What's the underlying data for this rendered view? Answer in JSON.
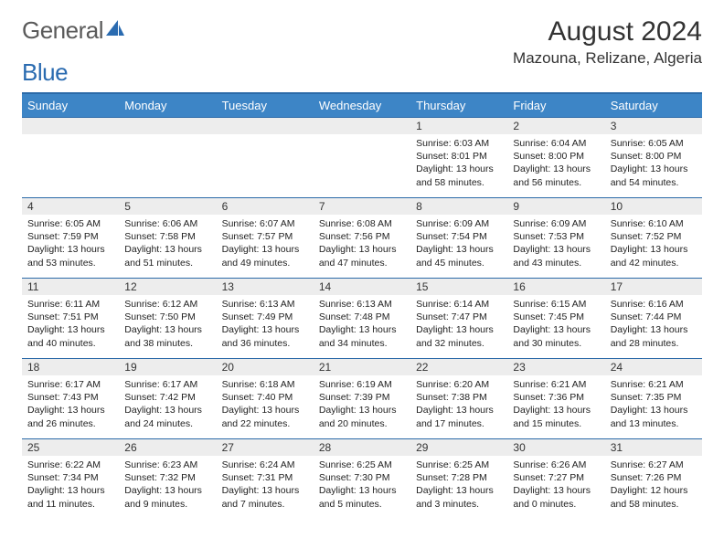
{
  "logo": {
    "word1": "General",
    "word2": "Blue"
  },
  "title": "August 2024",
  "location": "Mazouna, Relizane, Algeria",
  "colors": {
    "header_bg": "#3d85c6",
    "border": "#2b6aa8",
    "daynum_bg": "#ededed"
  },
  "weekdays": [
    "Sunday",
    "Monday",
    "Tuesday",
    "Wednesday",
    "Thursday",
    "Friday",
    "Saturday"
  ],
  "lead_blanks": 4,
  "days": [
    {
      "n": "1",
      "sr": "6:03 AM",
      "ss": "8:01 PM",
      "dl": "13 hours and 58 minutes."
    },
    {
      "n": "2",
      "sr": "6:04 AM",
      "ss": "8:00 PM",
      "dl": "13 hours and 56 minutes."
    },
    {
      "n": "3",
      "sr": "6:05 AM",
      "ss": "8:00 PM",
      "dl": "13 hours and 54 minutes."
    },
    {
      "n": "4",
      "sr": "6:05 AM",
      "ss": "7:59 PM",
      "dl": "13 hours and 53 minutes."
    },
    {
      "n": "5",
      "sr": "6:06 AM",
      "ss": "7:58 PM",
      "dl": "13 hours and 51 minutes."
    },
    {
      "n": "6",
      "sr": "6:07 AM",
      "ss": "7:57 PM",
      "dl": "13 hours and 49 minutes."
    },
    {
      "n": "7",
      "sr": "6:08 AM",
      "ss": "7:56 PM",
      "dl": "13 hours and 47 minutes."
    },
    {
      "n": "8",
      "sr": "6:09 AM",
      "ss": "7:54 PM",
      "dl": "13 hours and 45 minutes."
    },
    {
      "n": "9",
      "sr": "6:09 AM",
      "ss": "7:53 PM",
      "dl": "13 hours and 43 minutes."
    },
    {
      "n": "10",
      "sr": "6:10 AM",
      "ss": "7:52 PM",
      "dl": "13 hours and 42 minutes."
    },
    {
      "n": "11",
      "sr": "6:11 AM",
      "ss": "7:51 PM",
      "dl": "13 hours and 40 minutes."
    },
    {
      "n": "12",
      "sr": "6:12 AM",
      "ss": "7:50 PM",
      "dl": "13 hours and 38 minutes."
    },
    {
      "n": "13",
      "sr": "6:13 AM",
      "ss": "7:49 PM",
      "dl": "13 hours and 36 minutes."
    },
    {
      "n": "14",
      "sr": "6:13 AM",
      "ss": "7:48 PM",
      "dl": "13 hours and 34 minutes."
    },
    {
      "n": "15",
      "sr": "6:14 AM",
      "ss": "7:47 PM",
      "dl": "13 hours and 32 minutes."
    },
    {
      "n": "16",
      "sr": "6:15 AM",
      "ss": "7:45 PM",
      "dl": "13 hours and 30 minutes."
    },
    {
      "n": "17",
      "sr": "6:16 AM",
      "ss": "7:44 PM",
      "dl": "13 hours and 28 minutes."
    },
    {
      "n": "18",
      "sr": "6:17 AM",
      "ss": "7:43 PM",
      "dl": "13 hours and 26 minutes."
    },
    {
      "n": "19",
      "sr": "6:17 AM",
      "ss": "7:42 PM",
      "dl": "13 hours and 24 minutes."
    },
    {
      "n": "20",
      "sr": "6:18 AM",
      "ss": "7:40 PM",
      "dl": "13 hours and 22 minutes."
    },
    {
      "n": "21",
      "sr": "6:19 AM",
      "ss": "7:39 PM",
      "dl": "13 hours and 20 minutes."
    },
    {
      "n": "22",
      "sr": "6:20 AM",
      "ss": "7:38 PM",
      "dl": "13 hours and 17 minutes."
    },
    {
      "n": "23",
      "sr": "6:21 AM",
      "ss": "7:36 PM",
      "dl": "13 hours and 15 minutes."
    },
    {
      "n": "24",
      "sr": "6:21 AM",
      "ss": "7:35 PM",
      "dl": "13 hours and 13 minutes."
    },
    {
      "n": "25",
      "sr": "6:22 AM",
      "ss": "7:34 PM",
      "dl": "13 hours and 11 minutes."
    },
    {
      "n": "26",
      "sr": "6:23 AM",
      "ss": "7:32 PM",
      "dl": "13 hours and 9 minutes."
    },
    {
      "n": "27",
      "sr": "6:24 AM",
      "ss": "7:31 PM",
      "dl": "13 hours and 7 minutes."
    },
    {
      "n": "28",
      "sr": "6:25 AM",
      "ss": "7:30 PM",
      "dl": "13 hours and 5 minutes."
    },
    {
      "n": "29",
      "sr": "6:25 AM",
      "ss": "7:28 PM",
      "dl": "13 hours and 3 minutes."
    },
    {
      "n": "30",
      "sr": "6:26 AM",
      "ss": "7:27 PM",
      "dl": "13 hours and 0 minutes."
    },
    {
      "n": "31",
      "sr": "6:27 AM",
      "ss": "7:26 PM",
      "dl": "12 hours and 58 minutes."
    }
  ],
  "labels": {
    "sunrise": "Sunrise:",
    "sunset": "Sunset:",
    "daylight": "Daylight:"
  }
}
